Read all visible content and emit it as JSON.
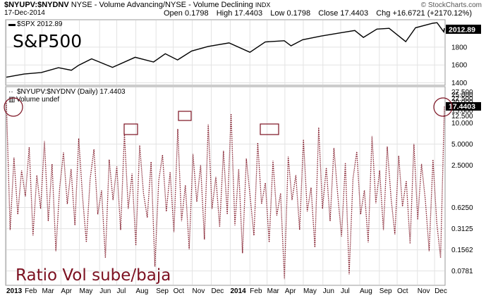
{
  "header": {
    "symbol": "$NYUPV:$NYDNV",
    "description": "NYSE - Volume Advancing/NYSE - Volume Declining",
    "exchange": "INDX",
    "date": "17-Dec-2014",
    "brand": "© StockCharts.com",
    "ohlc": {
      "open_label": "Open",
      "open": "0.1798",
      "high_label": "High",
      "high": "17.4403",
      "low_label": "Low",
      "low": "0.1798",
      "close_label": "Close",
      "close": "17.4403",
      "chg_label": "Chg",
      "chg": "+16.6721 (+2170.12%)"
    }
  },
  "overlays": {
    "top_title": "S&P500",
    "bottom_title": "Ratio Vol sube/baja"
  },
  "panels": {
    "top": {
      "legend": "$SPX 2012.89",
      "last_value": "2012.89"
    },
    "bottom": {
      "legend": "$NYUPV:$NYDNV (Daily) 17.4403",
      "sub_legend": "Volume undef",
      "last_value": "17.4403"
    }
  },
  "colors": {
    "spx_line": "#000000",
    "ratio_line": "#7b1020",
    "marker": "#7b1020",
    "grid": "#d9d9d9",
    "panel_border": "#999999"
  },
  "chart_data": [
    {
      "type": "line",
      "title": "$SPX",
      "log_scale": false,
      "ylim": [
        1380,
        2100
      ],
      "y_ticks": [
        "1400",
        "1600",
        "1800"
      ],
      "x_ticks": [
        "2013",
        "Feb",
        "Mar",
        "Apr",
        "May",
        "Jun",
        "Jul",
        "Aug",
        "Sep",
        "Oct",
        "Nov",
        "Dec",
        "2014",
        "Feb",
        "Mar",
        "Apr",
        "May",
        "Jun",
        "Jul",
        "Aug",
        "Sep",
        "Oct",
        "Nov",
        "Dec"
      ],
      "grid": true,
      "series": [
        {
          "name": "$SPX",
          "x": [
            "2013-01-02",
            "2013-01-31",
            "2013-02-28",
            "2013-03-28",
            "2013-04-18",
            "2013-04-30",
            "2013-05-21",
            "2013-06-24",
            "2013-07-31",
            "2013-08-30",
            "2013-09-18",
            "2013-10-08",
            "2013-10-31",
            "2013-11-27",
            "2013-12-31",
            "2014-02-03",
            "2014-02-28",
            "2014-03-31",
            "2014-04-11",
            "2014-04-30",
            "2014-05-30",
            "2014-06-30",
            "2014-07-24",
            "2014-08-07",
            "2014-08-29",
            "2014-09-18",
            "2014-10-15",
            "2014-10-31",
            "2014-11-28",
            "2014-12-05",
            "2014-12-16",
            "2014-12-17"
          ],
          "y": [
            1462,
            1498,
            1515,
            1569,
            1541,
            1597,
            1669,
            1573,
            1686,
            1633,
            1726,
            1656,
            1757,
            1808,
            1848,
            1742,
            1859,
            1872,
            1815,
            1883,
            1924,
            1960,
            1987,
            1909,
            2003,
            2011,
            1862,
            2018,
            2068,
            2075,
            1972,
            2012.89
          ]
        }
      ]
    },
    {
      "type": "line",
      "title": "$NYUPV:$NYDNV (Daily)",
      "log_scale": true,
      "ylim": [
        0.05,
        32
      ],
      "y_ticks": [
        "0.0781",
        "0.1562",
        "0.3125",
        "0.6250",
        "2.5000",
        "5.0000",
        "10.000",
        "12.500",
        "15.000",
        "20.000",
        "22.500",
        "25.000",
        "27.500"
      ],
      "x_ticks": [
        "2013",
        "Feb",
        "Mar",
        "Apr",
        "May",
        "Jun",
        "Jul",
        "Aug",
        "Sep",
        "Oct",
        "Nov",
        "Dec",
        "2014",
        "Feb",
        "Mar",
        "Apr",
        "May",
        "Jun",
        "Jul",
        "Aug",
        "Sep",
        "Oct",
        "Nov",
        "Dec"
      ],
      "grid": true,
      "series": [
        {
          "name": "$NYUPV:$NYDNV",
          "x_start": "2013-01-02",
          "x_end": "2014-12-17",
          "values": [
            20.5,
            0.3,
            3.2,
            0.5,
            2.1,
            0.9,
            4.5,
            0.25,
            1.8,
            0.6,
            5.5,
            0.4,
            2.6,
            0.15,
            1.2,
            3.8,
            0.7,
            2.2,
            0.35,
            6.0,
            0.9,
            0.2,
            1.6,
            4.2,
            0.5,
            1.1,
            0.12,
            3.0,
            0.8,
            2.4,
            0.3,
            7.0,
            0.6,
            1.9,
            0.18,
            4.8,
            1.0,
            0.45,
            2.8,
            0.09,
            1.5,
            3.5,
            0.55,
            2.0,
            0.28,
            8.2,
            0.4,
            1.3,
            0.16,
            3.6,
            0.75,
            2.5,
            0.22,
            9.5,
            0.6,
            1.7,
            0.33,
            4.0,
            0.5,
            13.5,
            0.35,
            2.2,
            0.14,
            3.1,
            0.9,
            0.25,
            5.2,
            0.7,
            1.4,
            0.2,
            2.9,
            0.48,
            1.0,
            0.06,
            3.3,
            0.8,
            1.8,
            0.3,
            5.8,
            0.55,
            1.2,
            0.17,
            8.6,
            0.6,
            2.3,
            0.4,
            4.4,
            0.95,
            0.24,
            2.7,
            0.07,
            1.6,
            3.9,
            0.5,
            1.1,
            0.2,
            6.5,
            0.72,
            2.1,
            0.3,
            4.6,
            0.85,
            0.26,
            3.4,
            0.65,
            1.5,
            0.19,
            5.0,
            0.42,
            2.6,
            0.8,
            0.15,
            3.0,
            0.38,
            0.12,
            17.44
          ]
        }
      ]
    }
  ],
  "annotations": {
    "circles": [
      "2013 start spike",
      "Dec 2014 spike"
    ],
    "boxes": [
      "Jul 2013 peak",
      "Oct 2013 peak",
      "Mar 2014 peak"
    ]
  }
}
